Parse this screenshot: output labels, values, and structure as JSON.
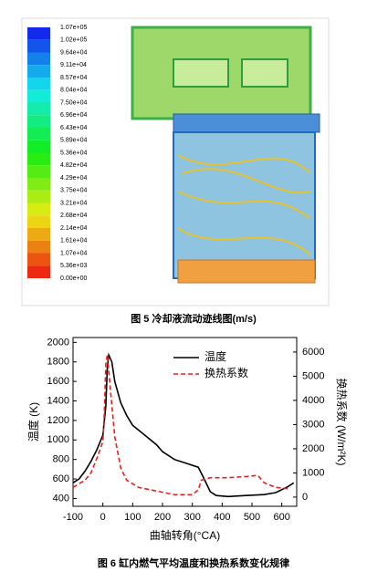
{
  "figure5": {
    "colorbar_labels": [
      "1.07e+05",
      "1.02e+05",
      "9.64e+04",
      "9.11e+04",
      "8.57e+04",
      "8.04e+04",
      "7.50e+04",
      "6.96e+04",
      "6.43e+04",
      "5.89e+04",
      "5.36e+04",
      "4.82e+04",
      "4.29e+04",
      "3.75e+04",
      "3.21e+04",
      "2.68e+04",
      "2.14e+04",
      "1.61e+04",
      "1.07e+04",
      "5.36e+03",
      "0.00e+00"
    ],
    "caption": "图 5  冷却液流动迹线图(m/s)"
  },
  "chart_data": {
    "type": "line",
    "caption": "图 6  缸内燃气平均温度和换热系数变化规律",
    "x_label": "曲轴转角(°CA)",
    "y_label": "温度 (K)",
    "y2_label": "换热系数 (W/m²K)",
    "xlim": [
      -100,
      650
    ],
    "xticks": [
      -100,
      0,
      100,
      200,
      300,
      400,
      500,
      600
    ],
    "ylim": [
      320,
      2050
    ],
    "yticks": [
      400,
      600,
      800,
      1000,
      1200,
      1400,
      1600,
      1800,
      2000
    ],
    "y2lim": [
      -380,
      6600
    ],
    "y2ticks": [
      0,
      1000,
      2000,
      3000,
      4000,
      5000,
      6000
    ],
    "legend": "upper right",
    "series": [
      {
        "name": "温度",
        "color": "#000000",
        "dash": "solid",
        "axis": "y",
        "x": [
          -100,
          -80,
          -60,
          -40,
          -20,
          0,
          10,
          15,
          20,
          30,
          40,
          60,
          80,
          100,
          140,
          180,
          200,
          240,
          280,
          320,
          340,
          360,
          380,
          420,
          480,
          540,
          580,
          620,
          640
        ],
        "values": [
          560,
          600,
          680,
          780,
          900,
          1050,
          1350,
          1750,
          1870,
          1800,
          1600,
          1380,
          1250,
          1150,
          1050,
          950,
          880,
          800,
          760,
          720,
          600,
          470,
          430,
          420,
          430,
          440,
          460,
          520,
          560
        ]
      },
      {
        "name": "换热系数",
        "color": "#e8201c",
        "dash": "dashed",
        "axis": "y2",
        "x": [
          -100,
          -60,
          -40,
          -20,
          0,
          5,
          10,
          15,
          25,
          40,
          60,
          80,
          120,
          180,
          240,
          300,
          320,
          330,
          360,
          420,
          480,
          520,
          540,
          580,
          620
        ],
        "values": [
          400,
          700,
          1000,
          1600,
          2300,
          3500,
          5500,
          5900,
          4500,
          2500,
          1200,
          700,
          400,
          250,
          100,
          100,
          300,
          700,
          800,
          800,
          850,
          900,
          600,
          400,
          350
        ]
      }
    ]
  }
}
